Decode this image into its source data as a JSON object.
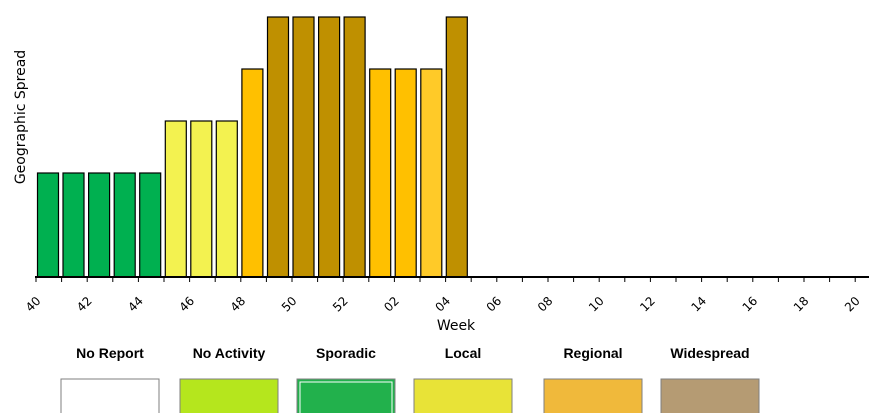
{
  "chart_data": {
    "type": "bar",
    "xlabel": "Week",
    "ylabel": "Geographic Spread",
    "levels": [
      "No Report",
      "No Activity",
      "Sporadic",
      "Local",
      "Regional",
      "Widespread"
    ],
    "level_colors": [
      "#ffffff",
      "#b5e61d",
      "#00b050",
      "#f3f250",
      "#ffc000",
      "#bf9000"
    ],
    "categories": [
      "40",
      "41",
      "42",
      "43",
      "44",
      "45",
      "46",
      "47",
      "48",
      "49",
      "50",
      "51",
      "52",
      "01",
      "02",
      "03",
      "04",
      "05",
      "06",
      "07",
      "08",
      "09",
      "10",
      "11",
      "12",
      "13",
      "14",
      "15",
      "16",
      "17",
      "18",
      "19",
      "20"
    ],
    "tick_labels": [
      "40",
      "42",
      "44",
      "46",
      "48",
      "50",
      "52",
      "02",
      "04",
      "06",
      "08",
      "10",
      "12",
      "14",
      "16",
      "18",
      "20"
    ],
    "values": [
      2,
      2,
      2,
      2,
      2,
      3,
      3,
      3,
      4,
      5,
      5,
      5,
      5,
      4,
      4,
      4,
      5,
      null,
      null,
      null,
      null,
      null,
      null,
      null,
      null,
      null,
      null,
      null,
      null,
      null,
      null,
      null,
      null
    ],
    "bar_colors": [
      "#00b050",
      "#00b050",
      "#00b050",
      "#00b050",
      "#00b050",
      "#f3f250",
      "#f3f250",
      "#f3f250",
      "#ffc000",
      "#bf9000",
      "#bf9000",
      "#bf9000",
      "#bf9000",
      "#ffc000",
      "#ffc000",
      "#ffca28",
      "#bf9000",
      null,
      null,
      null,
      null,
      null,
      null,
      null,
      null,
      null,
      null,
      null,
      null,
      null,
      null,
      null,
      null
    ],
    "ylim": [
      1,
      5
    ],
    "grid": false,
    "legend": {
      "placement": "bottom",
      "items": [
        {
          "label": "No Report",
          "color": "#ffffff"
        },
        {
          "label": "No Activity",
          "color": "#b5e61d"
        },
        {
          "label": "Sporadic",
          "color": "#22b14c"
        },
        {
          "label": "Local",
          "color": "#e8e337"
        },
        {
          "label": "Regional",
          "color": "#f0b93b"
        },
        {
          "label": "Widespread",
          "color": "#b59b73"
        }
      ]
    }
  }
}
